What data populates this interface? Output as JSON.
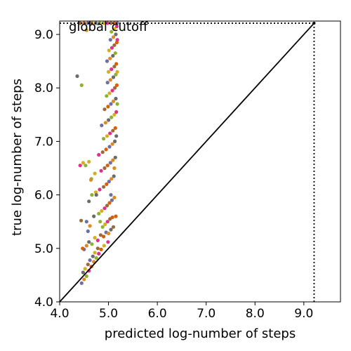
{
  "chart_data": {
    "type": "scatter",
    "xlabel": "predicted log-number of steps",
    "ylabel": "true log-number of steps",
    "xlim": [
      4.0,
      9.75
    ],
    "ylim": [
      4.0,
      9.25
    ],
    "xticks": [
      "4.0",
      "5.0",
      "6.0",
      "7.0",
      "8.0",
      "9.0"
    ],
    "yticks": [
      "4.0",
      "5.0",
      "6.0",
      "7.0",
      "8.0",
      "9.0"
    ],
    "annotation": "global cutoff",
    "cutoff": 9.21,
    "diagonal": [
      [
        4.0,
        4.0
      ],
      [
        9.21,
        9.21
      ]
    ],
    "grid": false,
    "point_colors": [
      "#6f6fa8",
      "#e08a1e",
      "#6b6b6b",
      "#8fb030",
      "#d4b020",
      "#e0308a",
      "#9b6a3a",
      "#d95f02"
    ],
    "points": [
      [
        4.45,
        4.35
      ],
      [
        4.5,
        4.42
      ],
      [
        4.48,
        4.55
      ],
      [
        4.55,
        4.48
      ],
      [
        4.52,
        4.62
      ],
      [
        4.6,
        4.58
      ],
      [
        4.58,
        4.7
      ],
      [
        4.65,
        4.66
      ],
      [
        4.62,
        4.78
      ],
      [
        4.7,
        4.75
      ],
      [
        4.68,
        4.85
      ],
      [
        4.75,
        4.82
      ],
      [
        4.72,
        4.92
      ],
      [
        4.8,
        4.9
      ],
      [
        4.78,
        5.0
      ],
      [
        4.85,
        4.98
      ],
      [
        4.5,
        4.98
      ],
      [
        4.55,
        5.05
      ],
      [
        4.6,
        5.12
      ],
      [
        4.66,
        5.08
      ],
      [
        4.72,
        5.2
      ],
      [
        4.78,
        5.15
      ],
      [
        4.84,
        5.25
      ],
      [
        4.9,
        5.22
      ],
      [
        4.95,
        5.3
      ],
      [
        5.0,
        5.28
      ],
      [
        5.05,
        5.35
      ],
      [
        4.88,
        5.4
      ],
      [
        4.93,
        5.45
      ],
      [
        4.98,
        5.5
      ],
      [
        5.03,
        5.55
      ],
      [
        5.08,
        5.58
      ],
      [
        4.55,
        5.5
      ],
      [
        4.62,
        5.42
      ],
      [
        4.7,
        5.6
      ],
      [
        4.8,
        5.65
      ],
      [
        4.86,
        5.7
      ],
      [
        4.92,
        5.75
      ],
      [
        4.97,
        5.8
      ],
      [
        5.02,
        5.85
      ],
      [
        5.07,
        5.9
      ],
      [
        5.12,
        5.95
      ],
      [
        4.6,
        5.88
      ],
      [
        4.66,
        6.0
      ],
      [
        4.74,
        6.05
      ],
      [
        4.82,
        6.1
      ],
      [
        4.9,
        6.15
      ],
      [
        4.96,
        6.2
      ],
      [
        5.01,
        6.25
      ],
      [
        5.06,
        6.3
      ],
      [
        5.11,
        6.35
      ],
      [
        4.65,
        6.3
      ],
      [
        4.72,
        6.4
      ],
      [
        4.85,
        6.45
      ],
      [
        4.92,
        6.5
      ],
      [
        4.98,
        6.55
      ],
      [
        5.04,
        6.6
      ],
      [
        5.09,
        6.65
      ],
      [
        5.14,
        6.7
      ],
      [
        4.53,
        6.55
      ],
      [
        4.6,
        6.62
      ],
      [
        4.8,
        6.75
      ],
      [
        4.88,
        6.8
      ],
      [
        4.95,
        6.85
      ],
      [
        5.02,
        6.9
      ],
      [
        5.08,
        6.95
      ],
      [
        5.13,
        7.0
      ],
      [
        4.9,
        7.05
      ],
      [
        4.97,
        7.1
      ],
      [
        5.03,
        7.15
      ],
      [
        5.09,
        7.2
      ],
      [
        5.14,
        7.25
      ],
      [
        4.86,
        7.3
      ],
      [
        4.94,
        7.35
      ],
      [
        5.0,
        7.4
      ],
      [
        5.06,
        7.45
      ],
      [
        5.12,
        7.5
      ],
      [
        5.16,
        7.55
      ],
      [
        4.92,
        7.6
      ],
      [
        4.99,
        7.65
      ],
      [
        5.05,
        7.7
      ],
      [
        5.1,
        7.75
      ],
      [
        5.15,
        7.8
      ],
      [
        4.96,
        7.85
      ],
      [
        5.02,
        7.9
      ],
      [
        5.08,
        7.95
      ],
      [
        5.13,
        8.0
      ],
      [
        5.17,
        8.05
      ],
      [
        4.98,
        8.1
      ],
      [
        5.04,
        8.15
      ],
      [
        5.1,
        8.2
      ],
      [
        5.15,
        8.25
      ],
      [
        5.0,
        8.3
      ],
      [
        5.06,
        8.35
      ],
      [
        5.12,
        8.4
      ],
      [
        5.16,
        8.45
      ],
      [
        4.97,
        8.5
      ],
      [
        5.03,
        8.55
      ],
      [
        5.09,
        8.6
      ],
      [
        5.14,
        8.65
      ],
      [
        5.01,
        8.7
      ],
      [
        5.07,
        8.75
      ],
      [
        5.12,
        8.8
      ],
      [
        5.17,
        8.85
      ],
      [
        5.04,
        8.9
      ],
      [
        5.1,
        8.95
      ],
      [
        5.15,
        9.0
      ],
      [
        5.06,
        9.05
      ],
      [
        5.12,
        9.1
      ],
      [
        5.17,
        9.15
      ],
      [
        4.42,
        9.21
      ],
      [
        4.5,
        9.21
      ],
      [
        4.58,
        9.21
      ],
      [
        4.66,
        9.21
      ],
      [
        4.74,
        9.21
      ],
      [
        4.82,
        9.21
      ],
      [
        4.9,
        9.21
      ],
      [
        4.98,
        9.21
      ],
      [
        5.05,
        9.21
      ],
      [
        5.12,
        9.21
      ],
      [
        5.18,
        9.21
      ],
      [
        4.55,
        9.08
      ],
      [
        4.36,
        8.22
      ],
      [
        4.45,
        8.05
      ],
      [
        4.48,
        6.6
      ],
      [
        4.42,
        6.55
      ],
      [
        4.44,
        5.52
      ],
      [
        4.47,
        5.0
      ],
      [
        4.58,
        5.32
      ],
      [
        4.64,
        6.28
      ],
      [
        4.75,
        6.0
      ],
      [
        4.83,
        5.5
      ],
      [
        4.91,
        5.05
      ],
      [
        4.99,
        5.12
      ],
      [
        5.1,
        5.4
      ],
      [
        5.15,
        5.6
      ],
      [
        5.05,
        6.0
      ],
      [
        5.12,
        6.5
      ],
      [
        5.16,
        7.1
      ],
      [
        5.18,
        7.7
      ],
      [
        5.18,
        8.3
      ],
      [
        5.18,
        8.9
      ]
    ]
  }
}
